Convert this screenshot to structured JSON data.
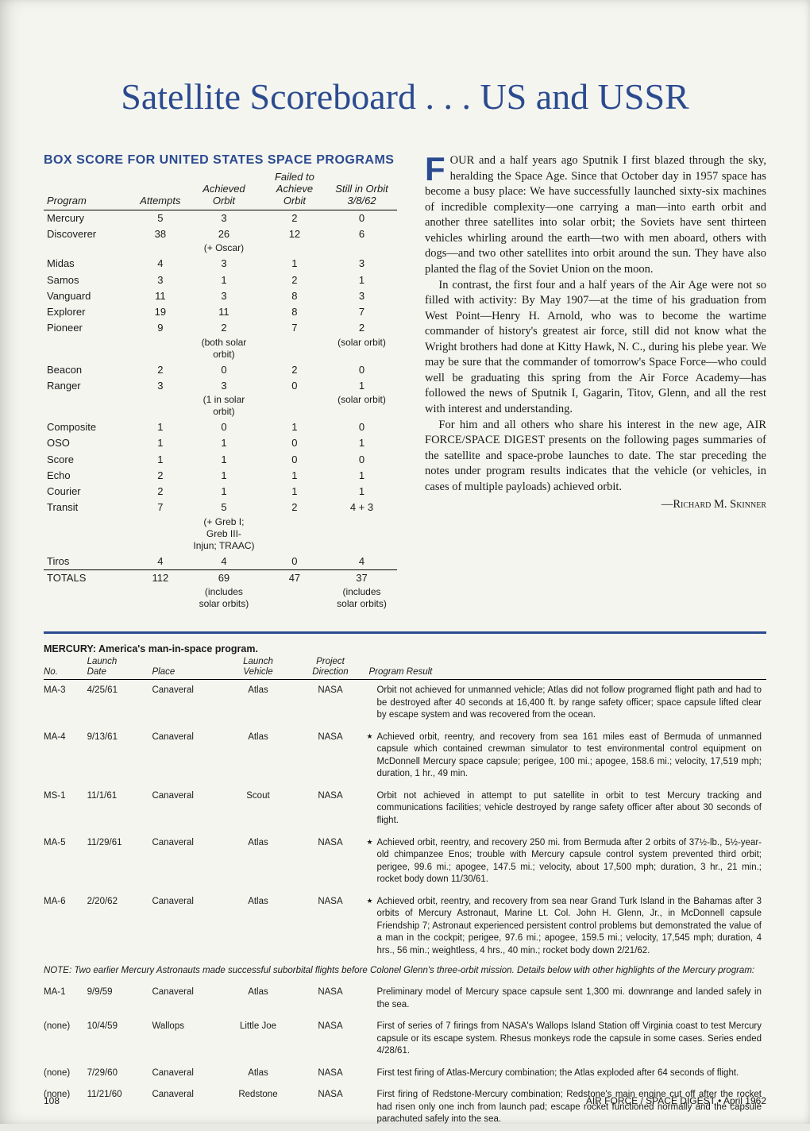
{
  "title": "Satellite Scoreboard . . . US and USSR",
  "box_score": {
    "heading": "BOX SCORE FOR UNITED STATES SPACE PROGRAMS",
    "columns": [
      "Program",
      "Attempts",
      "Achieved\nOrbit",
      "Failed to\nAchieve Orbit",
      "Still in Orbit\n3/8/62"
    ],
    "col_widths": [
      "26%",
      "14%",
      "22%",
      "18%",
      "20%"
    ],
    "rows": [
      {
        "prog": "Mercury",
        "a": "5",
        "ach": "3",
        "fail": "2",
        "orbit": "0"
      },
      {
        "prog": "Discoverer",
        "a": "38",
        "ach": "26",
        "fail": "12",
        "orbit": "6",
        "ach_note": "(+ Oscar)"
      },
      {
        "prog": "Midas",
        "a": "4",
        "ach": "3",
        "fail": "1",
        "orbit": "3"
      },
      {
        "prog": "Samos",
        "a": "3",
        "ach": "1",
        "fail": "2",
        "orbit": "1"
      },
      {
        "prog": "Vanguard",
        "a": "11",
        "ach": "3",
        "fail": "8",
        "orbit": "3"
      },
      {
        "prog": "Explorer",
        "a": "19",
        "ach": "11",
        "fail": "8",
        "orbit": "7"
      },
      {
        "prog": "Pioneer",
        "a": "9",
        "ach": "2",
        "fail": "7",
        "orbit": "2",
        "ach_note": "(both solar\norbit)",
        "orbit_note": "(solar orbit)"
      },
      {
        "prog": "Beacon",
        "a": "2",
        "ach": "0",
        "fail": "2",
        "orbit": "0"
      },
      {
        "prog": "Ranger",
        "a": "3",
        "ach": "3",
        "fail": "0",
        "orbit": "1",
        "ach_note": "(1 in solar\norbit)",
        "orbit_note": "(solar orbit)"
      },
      {
        "prog": "Composite",
        "a": "1",
        "ach": "0",
        "fail": "1",
        "orbit": "0"
      },
      {
        "prog": "OSO",
        "a": "1",
        "ach": "1",
        "fail": "0",
        "orbit": "1"
      },
      {
        "prog": "Score",
        "a": "1",
        "ach": "1",
        "fail": "0",
        "orbit": "0"
      },
      {
        "prog": "Echo",
        "a": "2",
        "ach": "1",
        "fail": "1",
        "orbit": "1"
      },
      {
        "prog": "Courier",
        "a": "2",
        "ach": "1",
        "fail": "1",
        "orbit": "1"
      },
      {
        "prog": "Transit",
        "a": "7",
        "ach": "5",
        "fail": "2",
        "orbit": "4 + 3",
        "ach_note": "(+ Greb I;\nGreb III-\nInjun; TRAAC)"
      },
      {
        "prog": "Tiros",
        "a": "4",
        "ach": "4",
        "fail": "0",
        "orbit": "4"
      }
    ],
    "totals": {
      "prog": "TOTALS",
      "a": "112",
      "ach": "69",
      "fail": "47",
      "orbit": "37",
      "ach_note": "(includes\nsolar orbits)",
      "orbit_note": "(includes\nsolar orbits)"
    }
  },
  "prose": {
    "dropcap": "F",
    "p1": "OUR and a half years ago Sputnik I first blazed through the sky, heralding the Space Age. Since that October day in 1957 space has become a busy place: We have successfully launched sixty-six machines of incredible complexity—one carrying a man—into earth orbit and another three satellites into solar orbit; the Soviets have sent thirteen vehicles whirling around the earth—two with men aboard, others with dogs—and two other satellites into orbit around the sun. They have also planted the flag of the Soviet Union on the moon.",
    "p2": "In contrast, the first four and a half years of the Air Age were not so filled with activity: By May 1907—at the time of his graduation from West Point—Henry H. Arnold, who was to become the wartime commander of history's greatest air force, still did not know what the Wright brothers had done at Kitty Hawk, N. C., during his plebe year. We may be sure that the commander of tomorrow's Space Force—who could well be graduating this spring from the Air Force Academy—has followed the news of Sputnik I, Gagarin, Titov, Glenn, and all the rest with interest and understanding.",
    "p3": "For him and all others who share his interest in the new age, AIR FORCE/SPACE DIGEST presents on the following pages summaries of the satellite and space-probe launches to date. The star preceding the notes under program results indicates that the vehicle (or vehicles, in cases of multiple payloads) achieved orbit.",
    "byline": "—Richard M. Skinner"
  },
  "mercury": {
    "heading": "MERCURY: America's man-in-space program.",
    "columns": [
      "No.",
      "Launch\nDate",
      "Place",
      "Launch\nVehicle",
      "Project\nDirection",
      "Program Result"
    ],
    "col_widths": [
      "6%",
      "9%",
      "10%",
      "10%",
      "10%",
      "55%"
    ],
    "rows": [
      {
        "no": "MA-3",
        "date": "4/25/61",
        "place": "Canaveral",
        "veh": "Atlas",
        "dir": "NASA",
        "star": false,
        "res": "Orbit not achieved for unmanned vehicle; Atlas did not follow programed flight path and had to be destroyed after 40 seconds at 16,400 ft. by range safety officer; space capsule lifted clear by escape system and was recovered from the ocean."
      },
      {
        "no": "MA-4",
        "date": "9/13/61",
        "place": "Canaveral",
        "veh": "Atlas",
        "dir": "NASA",
        "star": true,
        "res": "Achieved orbit, reentry, and recovery from sea 161 miles east of Bermuda of unmanned capsule which contained crewman simulator to test environmental control equipment on McDonnell Mercury space capsule; perigee, 100 mi.; apogee, 158.6 mi.; velocity, 17,519 mph; duration, 1 hr., 49 min."
      },
      {
        "no": "MS-1",
        "date": "11/1/61",
        "place": "Canaveral",
        "veh": "Scout",
        "dir": "NASA",
        "star": false,
        "res": "Orbit not achieved in attempt to put satellite in orbit to test Mercury tracking and communications facilities; vehicle destroyed by range safety officer after about 30 seconds of flight."
      },
      {
        "no": "MA-5",
        "date": "11/29/61",
        "place": "Canaveral",
        "veh": "Atlas",
        "dir": "NASA",
        "star": true,
        "res": "Achieved orbit, reentry, and recovery 250 mi. from Bermuda after 2 orbits of 37½-lb., 5½-year-old chimpanzee Enos; trouble with Mercury capsule control system prevented third orbit; perigee, 99.6 mi.; apogee, 147.5 mi.; velocity, about 17,500 mph; duration, 3 hr., 21 min.; rocket body down 11/30/61."
      },
      {
        "no": "MA-6",
        "date": "2/20/62",
        "place": "Canaveral",
        "veh": "Atlas",
        "dir": "NASA",
        "star": true,
        "res": "Achieved orbit, reentry, and recovery from sea near Grand Turk Island in the Bahamas after 3 orbits of Mercury Astronaut, Marine Lt. Col. John H. Glenn, Jr., in McDonnell capsule Friendship 7; Astronaut experienced persistent control problems but demonstrated the value of a man in the cockpit; perigee, 97.6 mi.; apogee, 159.5 mi.; velocity, 17,545 mph; duration, 4 hrs., 56 min.; weightless, 4 hrs., 40 min.; rocket body down 2/21/62."
      }
    ],
    "note": "NOTE: Two earlier Mercury Astronauts made successful suborbital flights before Colonel Glenn's three-orbit mission. Details below with other highlights of the Mercury program:",
    "rows2": [
      {
        "no": "MA-1",
        "date": "9/9/59",
        "place": "Canaveral",
        "veh": "Atlas",
        "dir": "NASA",
        "res": "Preliminary model of Mercury space capsule sent 1,300 mi. downrange and landed safely in the sea."
      },
      {
        "no": "(none)",
        "date": "10/4/59",
        "place": "Wallops",
        "veh": "Little Joe",
        "dir": "NASA",
        "res": "First of series of 7 firings from NASA's Wallops Island Station off Virginia coast to test Mercury capsule or its escape system. Rhesus monkeys rode the capsule in some cases. Series ended 4/28/61."
      },
      {
        "no": "(none)",
        "date": "7/29/60",
        "place": "Canaveral",
        "veh": "Atlas",
        "dir": "NASA",
        "res": "First test firing of Atlas-Mercury combination; the Atlas exploded after 64 seconds of flight."
      },
      {
        "no": "(none)",
        "date": "11/21/60",
        "place": "Canaveral",
        "veh": "Redstone",
        "dir": "NASA",
        "res": "First firing of Redstone-Mercury combination; Redstone's main engine cut off after the rocket had risen only one inch from launch pad; escape rocket functioned normally and the capsule parachuted safely into the sea."
      }
    ]
  },
  "footer": {
    "page": "108",
    "mag": "AIR FORCE / SPACE DIGEST  •  April 1962"
  },
  "colors": {
    "blue": "#2b4b8f",
    "bg": "#f5f5f0"
  }
}
